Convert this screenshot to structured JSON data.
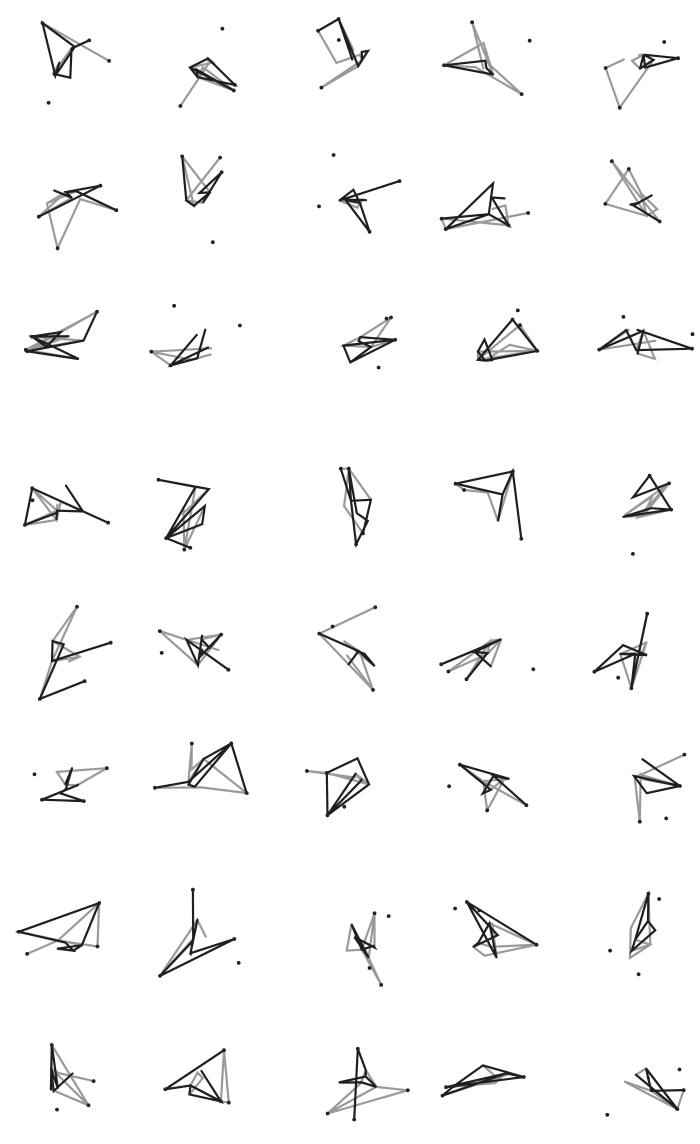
{
  "figure": {
    "rows": 8,
    "cols": 5,
    "colors": {
      "background": "#ffffff",
      "dark_edge": "#1f1f1f",
      "light_edge": "#9a9a9a",
      "node": "#222222"
    }
  }
}
